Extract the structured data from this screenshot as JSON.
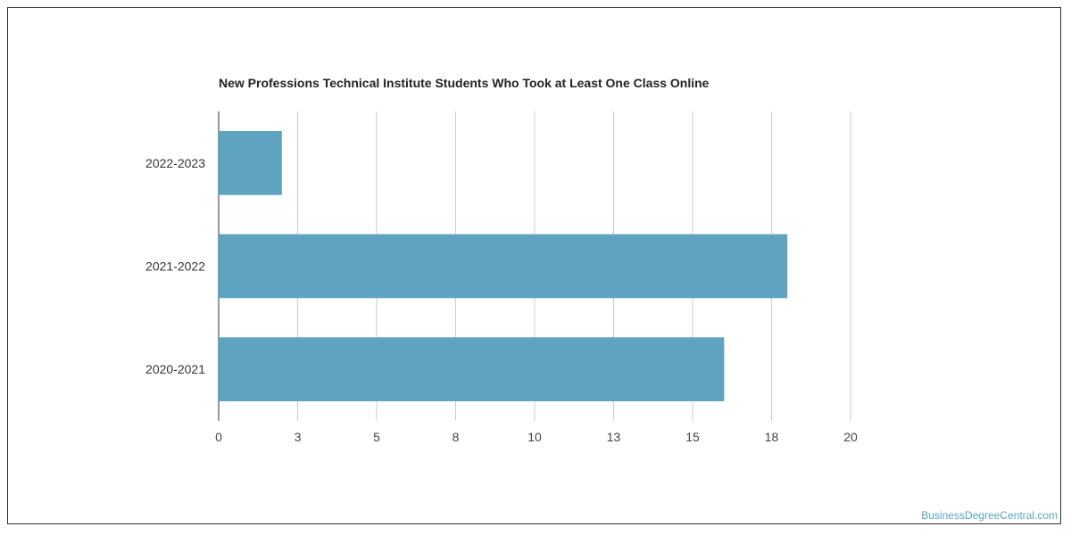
{
  "chart_data": {
    "type": "bar",
    "orientation": "horizontal",
    "title": "New Professions Technical Institute Students Who Took at Least One Class Online",
    "categories": [
      "2022-2023",
      "2021-2022",
      "2020-2021"
    ],
    "values": [
      2,
      18,
      16
    ],
    "xlim": [
      0,
      20
    ],
    "x_ticks": [
      0,
      2.5,
      5,
      7.5,
      10,
      12.5,
      15,
      17.5,
      20
    ],
    "x_tick_labels": [
      "0",
      "3",
      "5",
      "8",
      "10",
      "13",
      "15",
      "18",
      "20"
    ],
    "xlabel": "",
    "ylabel": "",
    "grid": "vertical",
    "legend": "none",
    "bar_color": "#5ea3c0"
  },
  "watermark": "BusinessDegreeCentral.com"
}
